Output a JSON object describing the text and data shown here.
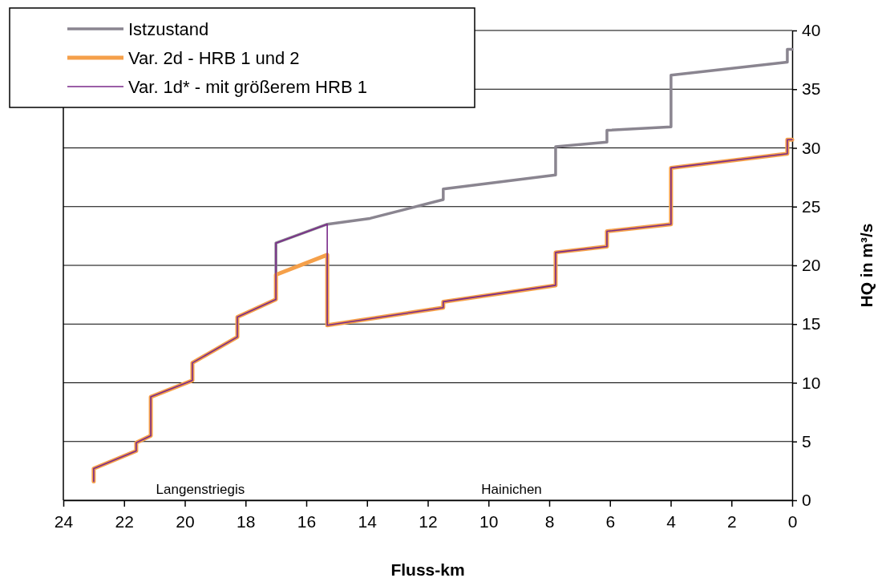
{
  "chart_data": {
    "type": "line",
    "xlabel": "Fluss-km",
    "ylabel": "HQ in m³/s",
    "xlim": [
      24,
      0
    ],
    "ylim": [
      0,
      40
    ],
    "xticks": [
      24,
      22,
      20,
      18,
      16,
      14,
      12,
      10,
      8,
      6,
      4,
      2,
      0
    ],
    "yticks": [
      0,
      5,
      10,
      15,
      20,
      25,
      30,
      35,
      40
    ],
    "grid": "y",
    "legend": "top left",
    "line_style": "solid",
    "marker": "none",
    "annotations": [
      "Langenstriegis",
      "Hainichen"
    ],
    "series": [
      {
        "name": "Istzustand",
        "color": "#8a8590",
        "x": [
          23.0,
          23.0,
          21.6,
          21.6,
          21.12,
          21.12,
          19.75,
          19.75,
          18.27,
          18.27,
          17.0,
          17.0,
          15.31,
          13.9,
          11.49,
          11.49,
          7.79,
          7.79,
          6.1,
          6.1,
          3.99,
          3.99,
          0.16,
          0.16,
          0
        ],
        "values": [
          1.6,
          2.7,
          4.2,
          4.9,
          5.5,
          8.8,
          10.2,
          11.7,
          13.9,
          15.6,
          17.1,
          21.9,
          23.5,
          24.0,
          25.6,
          26.5,
          27.7,
          30.1,
          30.5,
          31.5,
          31.8,
          36.2,
          37.3,
          38.4,
          38.4
        ]
      },
      {
        "name": "Var. 2d - HRB 1 und 2",
        "color": "#f5a04a",
        "x": [
          23.0,
          23.0,
          21.6,
          21.6,
          21.12,
          21.12,
          19.75,
          19.75,
          18.27,
          18.27,
          17.0,
          17.0,
          15.31,
          15.31,
          11.49,
          11.49,
          7.79,
          7.79,
          6.1,
          6.1,
          3.99,
          3.99,
          0.16,
          0.16,
          0
        ],
        "values": [
          1.6,
          2.7,
          4.2,
          4.9,
          5.5,
          8.8,
          10.2,
          11.7,
          13.9,
          15.6,
          17.1,
          19.2,
          20.9,
          14.9,
          16.4,
          16.9,
          18.3,
          21.1,
          21.6,
          22.9,
          23.5,
          28.3,
          29.5,
          30.7,
          30.7
        ]
      },
      {
        "name": "Var. 1d* - mit größerem HRB 1",
        "color": "#7a2a8a",
        "x": [
          23.0,
          23.0,
          21.6,
          21.6,
          21.12,
          21.12,
          19.75,
          19.75,
          18.27,
          18.27,
          17.0,
          17.0,
          15.31,
          15.31,
          11.49,
          11.49,
          7.79,
          7.79,
          6.1,
          6.1,
          3.99,
          3.99,
          0.16,
          0.16,
          0
        ],
        "values": [
          1.6,
          2.7,
          4.2,
          4.9,
          5.5,
          8.8,
          10.2,
          11.7,
          13.9,
          15.6,
          17.1,
          21.9,
          23.5,
          14.9,
          16.4,
          16.9,
          18.3,
          21.1,
          21.6,
          22.9,
          23.5,
          28.3,
          29.5,
          30.7,
          30.7
        ]
      }
    ]
  }
}
